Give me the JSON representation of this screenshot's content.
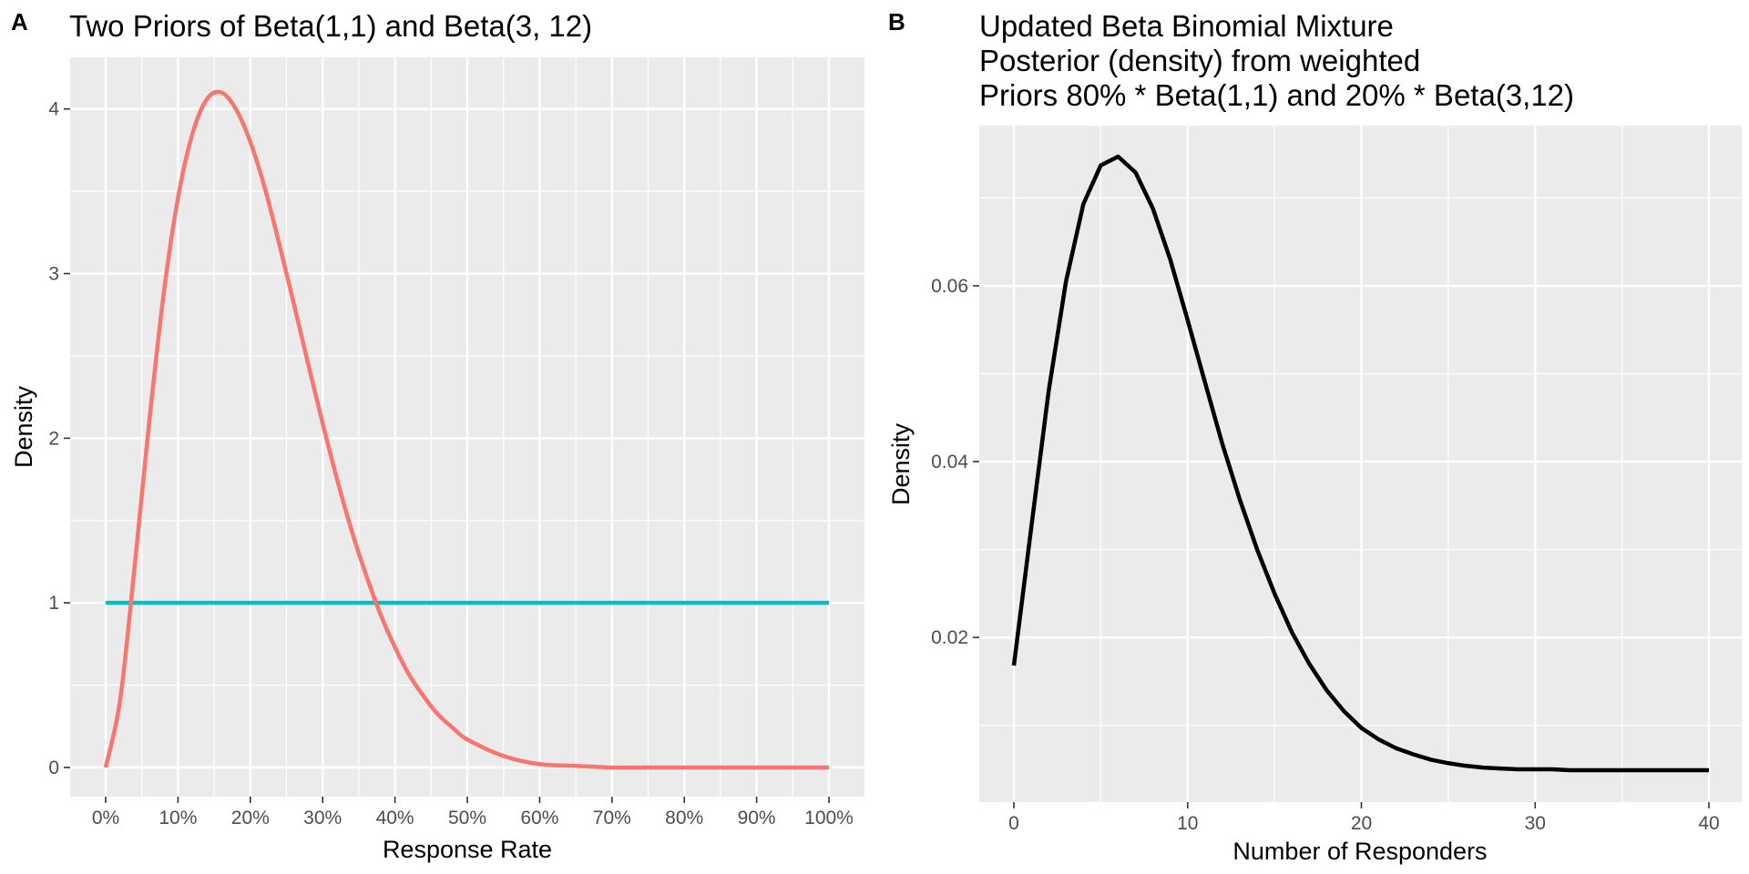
{
  "chart_data": [
    {
      "panel": "A",
      "type": "line",
      "title": "Two Priors of Beta(1,1) and Beta(3, 12)",
      "xlabel": "Response Rate",
      "ylabel": "Density",
      "xlim": [
        0,
        1
      ],
      "ylim": [
        0,
        4.12
      ],
      "x_ticks": [
        0,
        0.1,
        0.2,
        0.3,
        0.4,
        0.5,
        0.6,
        0.7,
        0.8,
        0.9,
        1.0
      ],
      "x_tick_labels": [
        "0%",
        "10%",
        "20%",
        "30%",
        "40%",
        "50%",
        "60%",
        "70%",
        "80%",
        "90%",
        "100%"
      ],
      "y_ticks": [
        0,
        1,
        2,
        3,
        4
      ],
      "y_tick_labels": [
        "0",
        "1",
        "2",
        "3",
        "4"
      ],
      "grid": true,
      "legend": "none",
      "series": [
        {
          "color": "#F8766D",
          "x": [
            0,
            0.02,
            0.04,
            0.06,
            0.08,
            0.1,
            0.12,
            0.14,
            0.16,
            0.18,
            0.2,
            0.22,
            0.24,
            0.26,
            0.28,
            0.3,
            0.32,
            0.34,
            0.36,
            0.38,
            0.4,
            0.42,
            0.44,
            0.46,
            0.48,
            0.5,
            0.55,
            0.6,
            0.65,
            0.7,
            0.75,
            0.8,
            0.85,
            0.9,
            0.95,
            1.0
          ],
          "y": [
            0,
            0.41,
            1.22,
            2.09,
            2.87,
            3.46,
            3.85,
            4.06,
            4.1,
            4.0,
            3.8,
            3.52,
            3.18,
            2.82,
            2.45,
            2.09,
            1.75,
            1.44,
            1.17,
            0.93,
            0.73,
            0.56,
            0.43,
            0.32,
            0.24,
            0.17,
            0.07,
            0.02,
            0.01,
            0.0,
            0.0,
            0.0,
            0.0,
            0.0,
            0.0,
            0.0
          ]
        },
        {
          "color": "#00BFC4",
          "x": [
            0,
            1
          ],
          "y": [
            1,
            1
          ]
        }
      ]
    },
    {
      "panel": "B",
      "type": "line",
      "title": "Updated Beta Binomial Mixture\nPosterior (density) from weighted\nPriors 80% * Beta(1,1) and 20% * Beta(3,12)",
      "xlabel": "Number of Responders",
      "ylabel": "Density",
      "xlim": [
        0,
        40
      ],
      "ylim": [
        0.0049,
        0.0747
      ],
      "x_ticks": [
        0,
        10,
        20,
        30,
        40
      ],
      "x_tick_labels": [
        "0",
        "10",
        "20",
        "30",
        "40"
      ],
      "y_ticks": [
        0.02,
        0.04,
        0.06
      ],
      "y_tick_labels": [
        "0.02",
        "0.04",
        "0.06"
      ],
      "grid": true,
      "legend": "none",
      "series": [
        {
          "color": "#000000",
          "x": [
            0,
            1,
            2,
            3,
            4,
            5,
            6,
            7,
            8,
            9,
            10,
            11,
            12,
            13,
            14,
            15,
            16,
            17,
            18,
            19,
            20,
            21,
            22,
            23,
            24,
            25,
            26,
            27,
            28,
            29,
            30,
            31,
            32,
            33,
            34,
            35,
            36,
            37,
            38,
            39,
            40
          ],
          "y": [
            0.0168,
            0.0325,
            0.048,
            0.0605,
            0.0693,
            0.0737,
            0.0747,
            0.0729,
            0.0688,
            0.063,
            0.0561,
            0.049,
            0.042,
            0.0357,
            0.03,
            0.025,
            0.0206,
            0.017,
            0.014,
            0.0116,
            0.0097,
            0.0084,
            0.0074,
            0.0067,
            0.0061,
            0.0057,
            0.0054,
            0.0052,
            0.0051,
            0.005,
            0.005,
            0.005,
            0.0049,
            0.0049,
            0.0049,
            0.0049,
            0.0049,
            0.0049,
            0.0049,
            0.0049,
            0.0049
          ]
        }
      ]
    }
  ]
}
